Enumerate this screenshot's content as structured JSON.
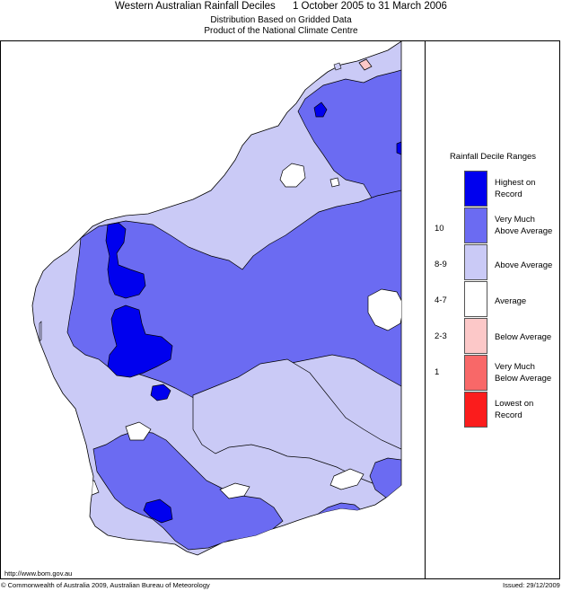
{
  "header": {
    "title_region": "Western Australian Rainfall Deciles",
    "title_period": "1 October 2005 to 31 March 2006",
    "subtitle1": "Distribution Based on Gridded Data",
    "subtitle2": "Product of the National Climate Centre"
  },
  "legend": {
    "title": "Rainfall Decile Ranges",
    "items": [
      {
        "label": "Highest on Record",
        "range": "",
        "color": "#0000ee"
      },
      {
        "label": "Very Much Above Average",
        "range": "10",
        "color": "#6b6bf2"
      },
      {
        "label": "Above Average",
        "range": "8-9",
        "color": "#cacaf6"
      },
      {
        "label": "Average",
        "range": "4-7",
        "color": "#ffffff"
      },
      {
        "label": "Below Average",
        "range": "2-3",
        "color": "#fcc8c8"
      },
      {
        "label": "Very Much Below Average",
        "range": "1",
        "color": "#f86868"
      },
      {
        "label": "Lowest on Record",
        "range": "",
        "color": "#fb1c1c"
      }
    ]
  },
  "footer": {
    "url": "http://www.bom.gov.au",
    "copyright": "© Commonwealth of Australia 2009, Australian Bureau of Meteorology",
    "issued": "Issued: 29/12/2009"
  }
}
